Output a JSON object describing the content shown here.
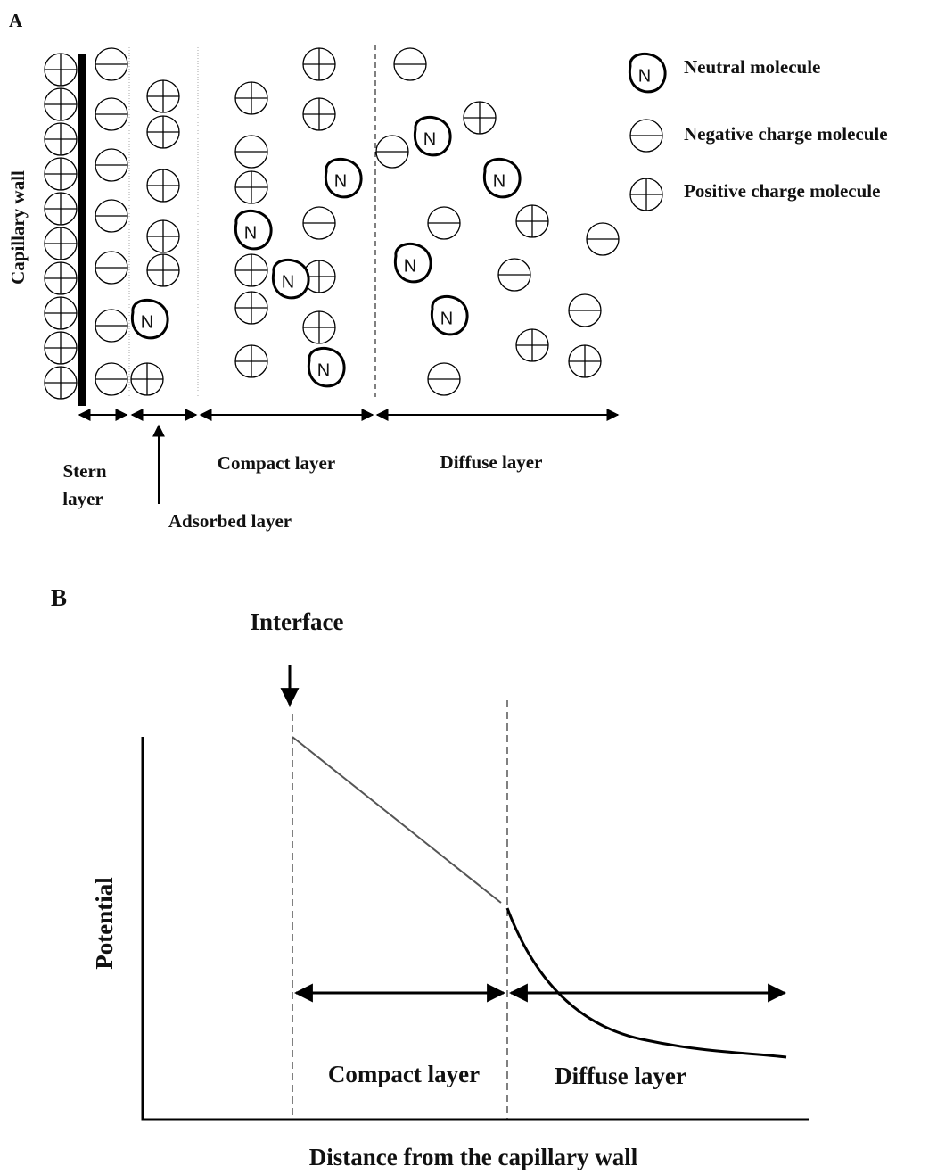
{
  "panel_a": {
    "label": "A",
    "wall_label": "Capillary wall",
    "neutral_symbol": "N",
    "legend": [
      "Neutral molecule",
      "Negative charge molecule",
      "Positive charge molecule"
    ],
    "stern_label": [
      "Stern",
      "layer"
    ],
    "adsorbed_label": "Adsorbed layer",
    "compact_label": "Compact layer",
    "diffuse_label": "Diffuse layer"
  },
  "panel_b": {
    "label": "B",
    "interface_label": "Interface",
    "y_label": "Potential",
    "x_label": "Distance from the capillary wall",
    "compact_label": "Compact layer",
    "diffuse_label": "Diffuse layer"
  }
}
